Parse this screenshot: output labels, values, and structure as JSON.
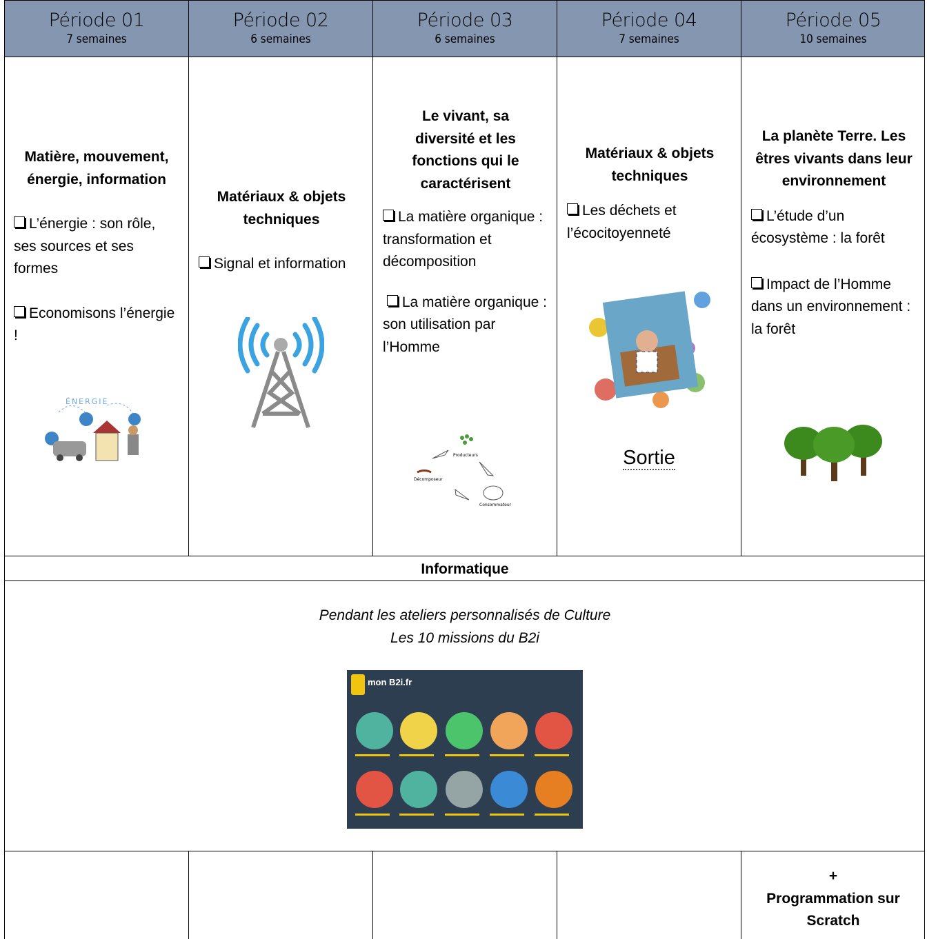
{
  "header": {
    "periods": [
      {
        "title": "Période 01",
        "duration": "7 semaines"
      },
      {
        "title": "Période 02",
        "duration": "6 semaines"
      },
      {
        "title": "Période 03",
        "duration": "6 semaines"
      },
      {
        "title": "Période 04",
        "duration": "7 semaines"
      },
      {
        "title": "Période 05",
        "duration": "10 semaines"
      }
    ]
  },
  "columns": [
    {
      "heading": "Matière, mouvement, énergie, information",
      "items": [
        "L’énergie : son rôle, ses sources et ses formes",
        "Economisons l’énergie !"
      ],
      "image_label": "ÉNERGIE"
    },
    {
      "heading": "Matériaux & objets techniques",
      "items": [
        "Signal et information"
      ]
    },
    {
      "heading": "Le vivant, sa diversité et les fonctions qui le caractérisent",
      "items": [
        "La matière organique : transformation et décomposition",
        "La matière organique : son utilisation par l’Homme"
      ],
      "cycle": [
        "Producteurs",
        "Décomposeur",
        "Consommateur"
      ]
    },
    {
      "heading": "Matériaux & objets techniques",
      "items": [
        "Les déchets et l’écocitoyenneté"
      ],
      "note": "Sortie"
    },
    {
      "heading": "La planète Terre. Les êtres vivants dans leur environnement",
      "items": [
        "L’étude d’un écosystème : la forêt",
        "Impact de l’Homme dans un environnement : la forêt"
      ]
    }
  ],
  "informatique": {
    "title": "Informatique",
    "lines": [
      "Pendant les ateliers personnalisés de Culture",
      "Les 10 missions du B2i"
    ],
    "logo": "mon B2i.fr"
  },
  "footer": {
    "plus": "+",
    "text": "Programmation sur Scratch"
  }
}
